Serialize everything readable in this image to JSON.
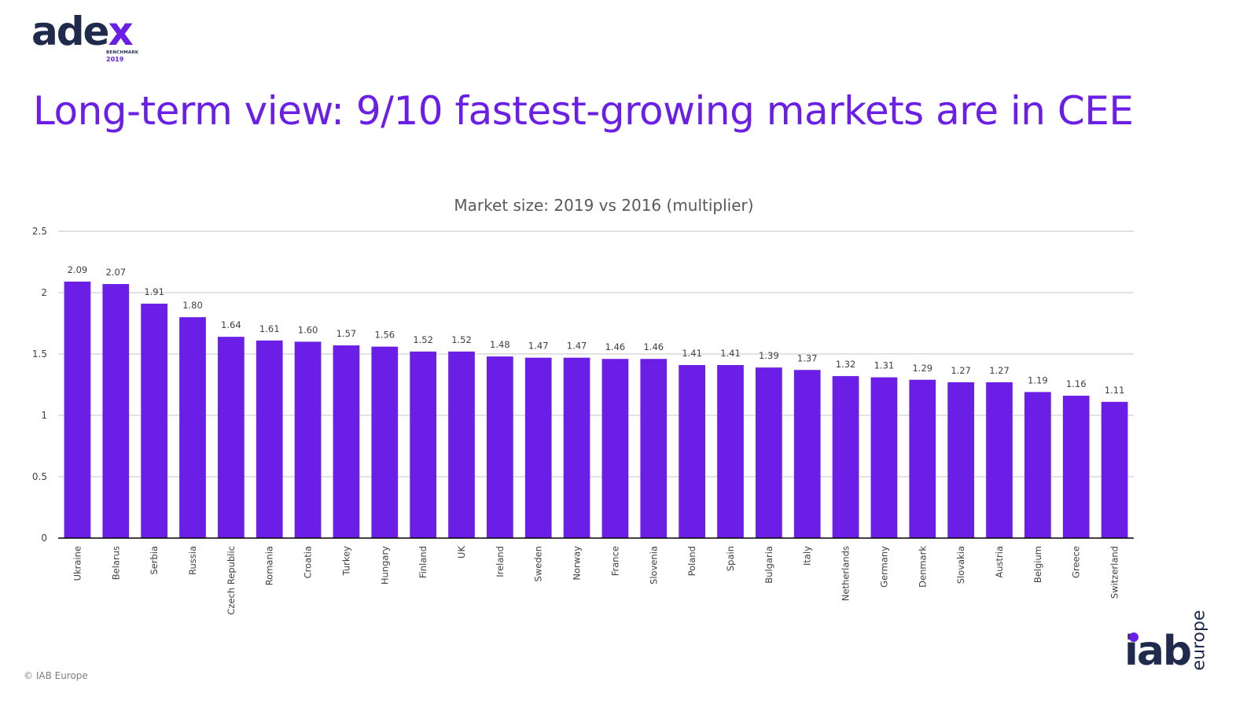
{
  "logo": {
    "word_main": "ade",
    "word_accent": "x",
    "subtitle": "BENCHMARK",
    "year": "2019"
  },
  "headline": "Long-term view: 9/10 fastest-growing markets are in CEE",
  "footer": {
    "copyright": "© IAB Europe"
  },
  "iab_logo": {
    "main": "iab",
    "suffix": "europe"
  },
  "colors": {
    "accent": "#6a1ee6",
    "bar": "#6a1ee6",
    "navy": "#1f2a4d",
    "grid": "#d9d9d9",
    "axis": "#000000"
  },
  "chart_data": {
    "type": "bar",
    "title": "Market size: 2019 vs 2016 (multiplier)",
    "xlabel": "",
    "ylabel": "",
    "ylim": [
      0,
      2.5
    ],
    "yticks": [
      0,
      0.5,
      1,
      1.5,
      2,
      2.5
    ],
    "ytick_labels": [
      "0",
      "0.5",
      "1",
      "1.5",
      "2",
      "2.5"
    ],
    "grid": true,
    "legend": "none",
    "categories": [
      "Ukraine",
      "Belarus",
      "Serbia",
      "Russia",
      "Czech Republic",
      "Romania",
      "Croatia",
      "Turkey",
      "Hungary",
      "Finland",
      "UK",
      "Ireland",
      "Sweden",
      "Norway",
      "France",
      "Slovenia",
      "Poland",
      "Spain",
      "Bulgaria",
      "Italy",
      "Netherlands",
      "Germany",
      "Denmark",
      "Slovakia",
      "Austria",
      "Belgium",
      "Greece",
      "Switzerland"
    ],
    "values": [
      2.09,
      2.07,
      1.91,
      1.8,
      1.64,
      1.61,
      1.6,
      1.57,
      1.56,
      1.52,
      1.52,
      1.48,
      1.47,
      1.47,
      1.46,
      1.46,
      1.41,
      1.41,
      1.39,
      1.37,
      1.32,
      1.31,
      1.29,
      1.27,
      1.27,
      1.19,
      1.16,
      1.11
    ],
    "value_labels": [
      "2.09",
      "2.07",
      "1.91",
      "1.80",
      "1.64",
      "1.61",
      "1.60",
      "1.57",
      "1.56",
      "1.52",
      "1.52",
      "1.48",
      "1.47",
      "1.47",
      "1.46",
      "1.46",
      "1.41",
      "1.41",
      "1.39",
      "1.37",
      "1.32",
      "1.31",
      "1.29",
      "1.27",
      "1.27",
      "1.19",
      "1.16",
      "1.11"
    ]
  }
}
